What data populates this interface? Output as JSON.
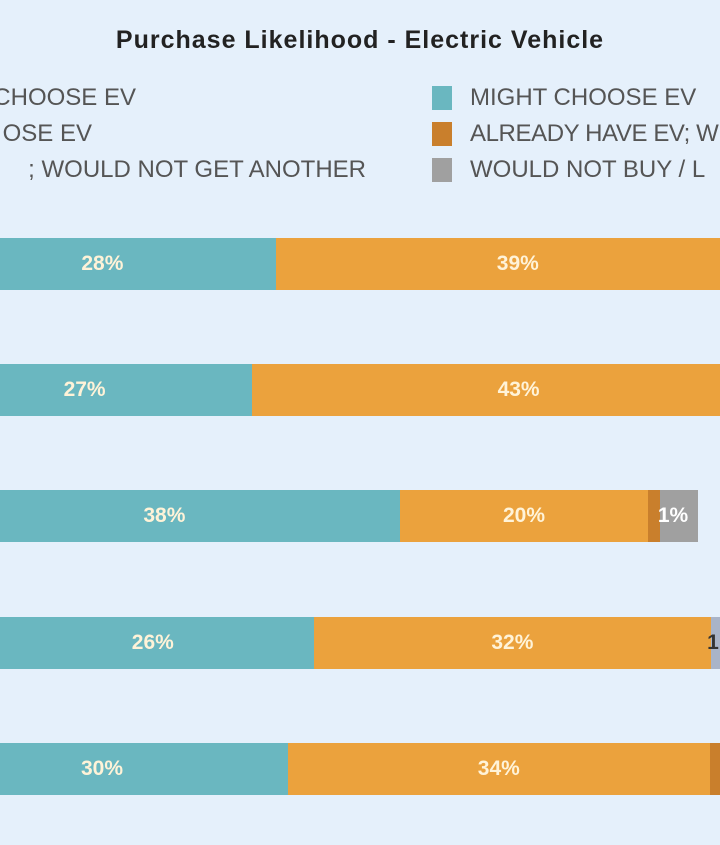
{
  "chart_data": {
    "type": "bar",
    "orientation": "horizontal-stacked",
    "title": "Purchase Likelihood - Electric Vehicle",
    "legend": [
      "…CHOOSE EV",
      "…OSE EV",
      "…; WOULD NOT GET ANOTHER",
      "MIGHT CHOOSE EV",
      "ALREADY HAVE EV; W…",
      "WOULD NOT BUY / L…"
    ],
    "legend_placement": "top",
    "series_colors": {
      "might": "#6ab7c0",
      "probably_not": "#eba23d",
      "already_have": "#c97f2c",
      "would_not_buy": "#a0a0a0"
    },
    "rows": [
      {
        "might": 28,
        "might_label": "28%",
        "orange": 39,
        "orange_label": "39%"
      },
      {
        "might": 27,
        "might_label": "27%",
        "orange": 43,
        "orange_label": "43%"
      },
      {
        "might": 38,
        "might_label": "38%",
        "orange": 20,
        "orange_label": "20%",
        "brown": 1,
        "grey": 1,
        "grey_label": "1%"
      },
      {
        "might": 26,
        "might_label": "26%",
        "orange": 32,
        "orange_label": "32%",
        "grey": 1,
        "grey_label": "1"
      },
      {
        "might": 30,
        "might_label": "30%",
        "orange": 34,
        "orange_label": "34%",
        "brown": 1
      }
    ]
  }
}
